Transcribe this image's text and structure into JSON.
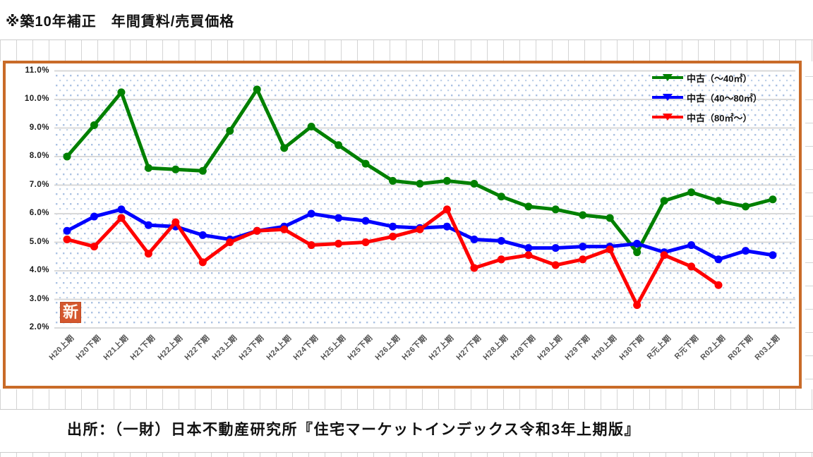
{
  "doc_title": "※築10年補正　年間賃料/売買価格",
  "source_line": "出所：（一財）日本不動産研究所『住宅マーケットインデックス令和3年上期版』",
  "stamp_text": "新",
  "colors": {
    "frame_border": "#c96b28",
    "stamp_fill": "#d4572e",
    "gridline": "#d9d9d9",
    "dot_pattern": "#9db8dd",
    "y_tick_text": "#1a1a1a",
    "x_tick_text": "#545454"
  },
  "chart_data": {
    "type": "line",
    "title": "",
    "xlabel": "",
    "ylabel": "",
    "ylim": [
      2.0,
      11.0
    ],
    "y_tick_step": 1.0,
    "y_tick_format": "percent_one_decimal",
    "grid": "horizontal",
    "legend_position": "top-right",
    "categories": [
      "H20上期",
      "H20下期",
      "H21上期",
      "H21下期",
      "H22上期",
      "H22下期",
      "H23上期",
      "H23下期",
      "H24上期",
      "H24下期",
      "H25上期",
      "H25下期",
      "H26上期",
      "H26下期",
      "H27上期",
      "H27下期",
      "H28上期",
      "H28下期",
      "H29上期",
      "H29下期",
      "H30上期",
      "H30下期",
      "R元上期",
      "R元下期",
      "R02上期",
      "R02下期",
      "R03上期"
    ],
    "series": [
      {
        "name": "中古（～40㎡）",
        "color": "#008000",
        "values": [
          8.0,
          9.1,
          10.25,
          7.6,
          7.55,
          7.5,
          8.9,
          10.35,
          8.3,
          9.05,
          8.4,
          7.75,
          7.15,
          7.05,
          7.15,
          7.05,
          6.6,
          6.25,
          6.15,
          5.95,
          5.85,
          4.65,
          6.45,
          6.75,
          6.45,
          6.25,
          6.5
        ]
      },
      {
        "name": "中古（40～80㎡）",
        "color": "#0000ff",
        "values": [
          5.4,
          5.9,
          6.15,
          5.6,
          5.55,
          5.25,
          5.1,
          5.4,
          5.55,
          6.0,
          5.85,
          5.75,
          5.55,
          5.5,
          5.55,
          5.1,
          5.05,
          4.8,
          4.8,
          4.85,
          4.85,
          4.95,
          4.65,
          4.9,
          4.4,
          4.7,
          4.55
        ]
      },
      {
        "name": "中古（80㎡～）",
        "color": "#ff0000",
        "values": [
          5.1,
          4.85,
          5.85,
          4.6,
          5.7,
          4.3,
          5.0,
          5.4,
          5.45,
          4.9,
          4.95,
          5.0,
          5.2,
          5.45,
          6.15,
          4.1,
          4.4,
          4.55,
          4.2,
          4.4,
          4.75,
          2.8,
          4.55,
          4.15,
          3.5,
          null,
          null
        ]
      }
    ]
  }
}
